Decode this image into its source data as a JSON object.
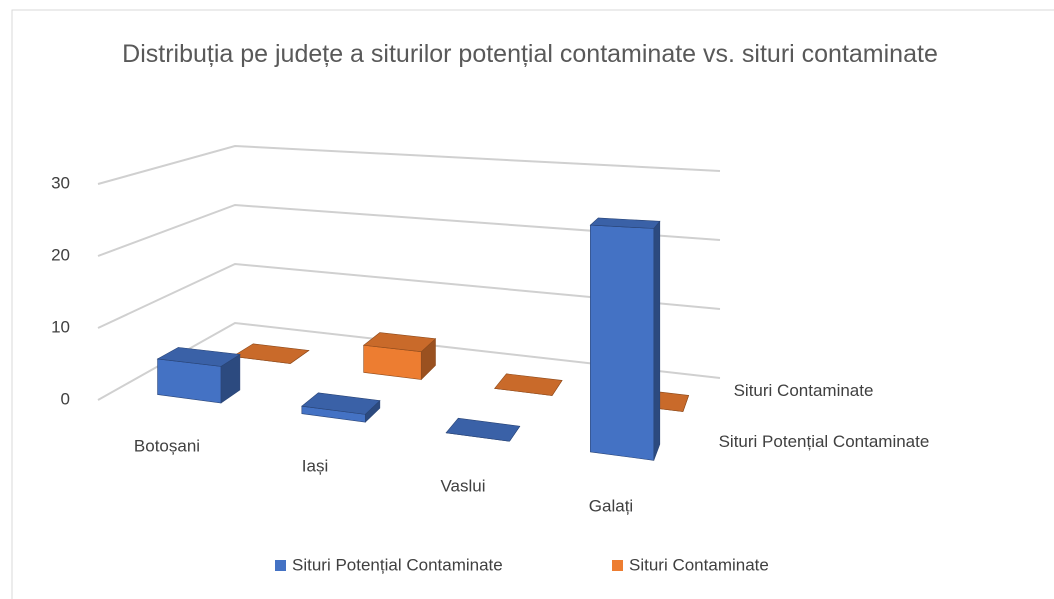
{
  "chart_data": {
    "type": "bar3d",
    "title": "Distribuția pe județe a siturilor potențial contaminate vs. situri contaminate",
    "categories": [
      "Botoșani",
      "Iași",
      "Vaslui",
      "Galați"
    ],
    "series": [
      {
        "name": "Situri Potențial Contaminate",
        "color": "#4472c4",
        "values": [
          5,
          1,
          0,
          27
        ]
      },
      {
        "name": "Situri Contaminate",
        "color": "#ed7d31",
        "values": [
          0,
          4,
          0,
          0
        ]
      }
    ],
    "ylim": [
      0,
      30
    ],
    "yticks": [
      0,
      10,
      20,
      30
    ],
    "grid": true,
    "legend": "bottom"
  }
}
